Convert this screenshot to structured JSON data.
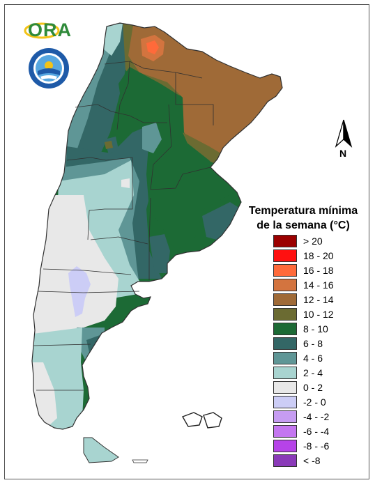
{
  "logos": {
    "ora_text": "ORA",
    "ora_colors": {
      "text": "#2f8a3a",
      "accent": "#f2c318"
    },
    "smn_emblem_lettering": "SERVICIO METEOROLÓGICO NACIONAL ARGENTINA",
    "smn_colors": {
      "outer": "#1e5aa8",
      "inner": "#57a7e0"
    }
  },
  "north_arrow": {
    "label": "N"
  },
  "legend": {
    "title_line1": "Temperatura mínima",
    "title_line2": "de la semana (°C)",
    "items": [
      {
        "label": "> 20",
        "color": "#9b0000"
      },
      {
        "label": "18 - 20",
        "color": "#ff1010"
      },
      {
        "label": "16 - 18",
        "color": "#ff6a3a"
      },
      {
        "label": "14 - 16",
        "color": "#d3743f"
      },
      {
        "label": "12 - 14",
        "color": "#9f6a37"
      },
      {
        "label": "10 - 12",
        "color": "#6b6b32"
      },
      {
        "label": "8 - 10",
        "color": "#1c6a35"
      },
      {
        "label": "6 - 8",
        "color": "#336766"
      },
      {
        "label": "4 - 6",
        "color": "#5f9696"
      },
      {
        "label": "2 - 4",
        "color": "#a8d4d0"
      },
      {
        "label": "0 - 2",
        "color": "#e8e8e8"
      },
      {
        "label": "-2 - 0",
        "color": "#cccdf6"
      },
      {
        "label": "-4 - -2",
        "color": "#c69cf2"
      },
      {
        "label": "-6 - -4",
        "color": "#c476f0"
      },
      {
        "label": "-8 - -6",
        "color": "#b643e8"
      },
      {
        "label": "< -8",
        "color": "#8a3ab8"
      }
    ]
  },
  "map": {
    "boundary_color": "#303030",
    "region_band_legend_labels": {
      "warm_northeast": "12 - 14",
      "central_humid": "8 - 10",
      "northwest_andes": "6 - 8",
      "pampa_west": "2 - 4",
      "patagonia_north": "0 - 2",
      "patagonia_cold_spot": "-2 - 0",
      "patagonia_south": "2 - 4",
      "hotspot_chaco": "14 - 16"
    }
  }
}
